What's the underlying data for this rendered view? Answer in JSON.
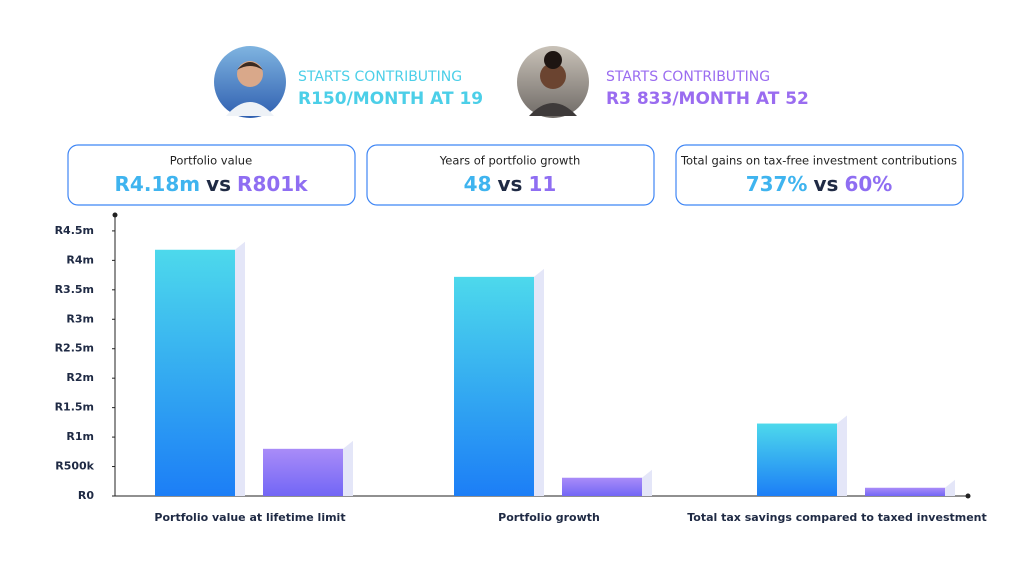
{
  "profiles": [
    {
      "line1": "STARTS CONTRIBUTING",
      "line2": "R150/MONTH AT 19",
      "color": "#4ccfe8"
    },
    {
      "line1": "STARTS CONTRIBUTING",
      "line2": "R3 833/MONTH AT 52",
      "color": "#9a6cf0"
    }
  ],
  "cards": [
    {
      "title": "Portfolio value",
      "value_a": "R4.18m",
      "vs": "vs",
      "value_b": "R801k"
    },
    {
      "title": "Years of portfolio growth",
      "value_a": "48",
      "vs": "vs",
      "value_b": "11"
    },
    {
      "title": "Total gains on tax-free investment contributions",
      "value_a": "737%",
      "vs": "vs",
      "value_b": "60%"
    }
  ],
  "chart_data": {
    "type": "bar",
    "categories": [
      "Portfolio value at lifetime limit",
      "Portfolio growth",
      "Total tax savings compared to taxed investment"
    ],
    "series": [
      {
        "color": "#2a8df5",
        "values": [
          4180000,
          3720000,
          1230000
        ]
      },
      {
        "color": "#8a74f3",
        "values": [
          801000,
          310000,
          140000
        ]
      }
    ],
    "ylim": [
      0,
      4770000
    ],
    "yticks": [
      {
        "value": 0,
        "label": "R0"
      },
      {
        "value": 500000,
        "label": "R500k"
      },
      {
        "value": 1000000,
        "label": "R1m"
      },
      {
        "value": 1500000,
        "label": "R1.5m"
      },
      {
        "value": 2000000,
        "label": "R2m"
      },
      {
        "value": 2500000,
        "label": "R2.5m"
      },
      {
        "value": 3000000,
        "label": "R3m"
      },
      {
        "value": 3500000,
        "label": "R3.5m"
      },
      {
        "value": 4000000,
        "label": "R4m"
      },
      {
        "value": 4500000,
        "label": "R4.5m"
      }
    ],
    "grid": false
  }
}
